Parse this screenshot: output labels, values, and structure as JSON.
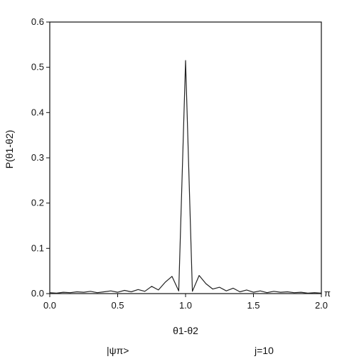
{
  "chart_data": {
    "type": "line",
    "title": "",
    "xlabel": "θ1-θ2",
    "ylabel": "P(θ1-θ2)",
    "xlim": [
      0,
      2
    ],
    "ylim": [
      0,
      0.6
    ],
    "x_unit": "π",
    "x_ticks": [
      "0.0",
      "0.5",
      "1.0",
      "1.5",
      "2.0"
    ],
    "y_ticks": [
      "0.0",
      "0.1",
      "0.2",
      "0.3",
      "0.4",
      "0.5",
      "0.6"
    ],
    "grid": false,
    "series": [
      {
        "x": [
          0.0,
          0.05,
          0.1,
          0.15,
          0.2,
          0.25,
          0.3,
          0.35,
          0.4,
          0.45,
          0.5,
          0.55,
          0.6,
          0.65,
          0.7,
          0.75,
          0.8,
          0.85,
          0.9,
          0.95,
          1.0,
          1.05,
          1.1,
          1.15,
          1.2,
          1.25,
          1.3,
          1.35,
          1.4,
          1.45,
          1.5,
          1.55,
          1.6,
          1.65,
          1.7,
          1.75,
          1.8,
          1.85,
          1.9,
          1.95,
          2.0
        ],
        "values": [
          0.002,
          0.001,
          0.003,
          0.002,
          0.004,
          0.003,
          0.005,
          0.002,
          0.004,
          0.006,
          0.003,
          0.007,
          0.004,
          0.009,
          0.005,
          0.016,
          0.008,
          0.025,
          0.038,
          0.006,
          0.515,
          0.005,
          0.04,
          0.022,
          0.01,
          0.014,
          0.006,
          0.012,
          0.004,
          0.008,
          0.003,
          0.006,
          0.002,
          0.005,
          0.003,
          0.004,
          0.002,
          0.003,
          0.001,
          0.002,
          0.001
        ]
      }
    ]
  },
  "captions": {
    "left": "|ψπ>",
    "right": "j=10"
  },
  "colors": {
    "line": "#222222",
    "axis": "#111111"
  }
}
